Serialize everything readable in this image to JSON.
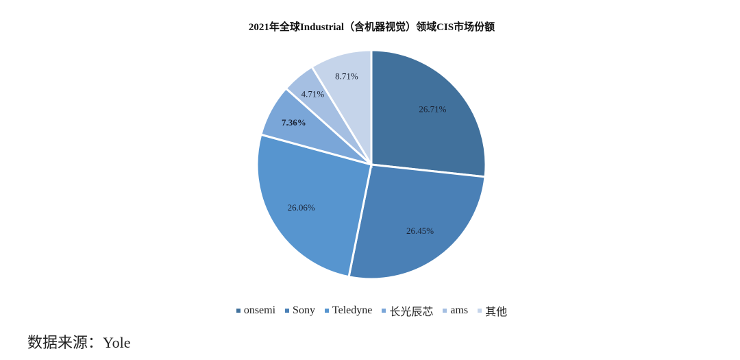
{
  "chart_data": {
    "type": "pie",
    "title": "2021年全球Industrial（含机器视觉）领域CIS市场份额",
    "categories": [
      "onsemi",
      "Sony",
      "Teledyne",
      "长光辰芯",
      "ams",
      "其他"
    ],
    "values": [
      26.71,
      26.45,
      26.06,
      7.36,
      4.71,
      8.71
    ],
    "labels": [
      "26.71%",
      "26.45%",
      "26.06%",
      "7.36%",
      "4.71%",
      "8.71%"
    ],
    "colors": [
      "#41719c",
      "#4a80b6",
      "#5795cf",
      "#7aa6d8",
      "#a5bfe2",
      "#c5d4ea"
    ],
    "label_colors": [
      "#1a2233",
      "#1a2233",
      "#1a2233",
      "#c0142a",
      "#1a2233",
      "#1a2233"
    ],
    "start_angle": "12 o'clock, clockwise",
    "legend_position": "bottom"
  },
  "header": {
    "title": "2021年全球Industrial（含机器视觉）领域CIS市场份额"
  },
  "legend": [
    {
      "label": "onsemi",
      "color": "#41719c"
    },
    {
      "label": "Sony",
      "color": "#4a80b6"
    },
    {
      "label": "Teledyne",
      "color": "#5795cf"
    },
    {
      "label": "长光辰芯",
      "color": "#7aa6d8"
    },
    {
      "label": "ams",
      "color": "#a5bfe2"
    },
    {
      "label": "其他",
      "color": "#c5d4ea"
    }
  ],
  "footer": {
    "source": "数据来源：Yole"
  }
}
